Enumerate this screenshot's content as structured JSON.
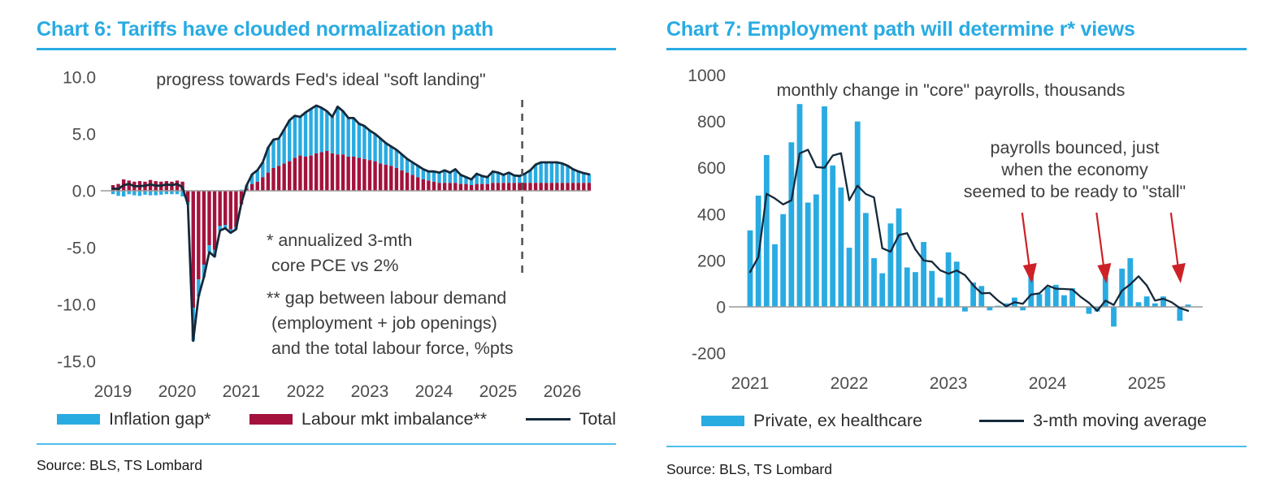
{
  "colors": {
    "accent_blue": "#29ABE2",
    "bar_blue": "#29ABE2",
    "bar_crimson": "#A3123C",
    "line_dark": "#15293A",
    "arrow_red": "#CC2127",
    "rule_light_blue": "#4FBEEC",
    "axis_text": "#4d4d4d"
  },
  "left_panel": {
    "title": "Chart 6: Tariffs have clouded normalization path",
    "subtitle": "progress towards Fed's ideal \"soft landing\"",
    "footnote_pce": "* annualized 3-mth\n core PCE vs 2%",
    "footnote_labour": "** gap between labour demand\n (employment + job openings)\n and the total labour force, %pts",
    "source": "Source: BLS, TS Lombard",
    "legend": [
      {
        "label": "Inflation gap*",
        "color": "#29ABE2",
        "type": "swatch"
      },
      {
        "label": "Labour mkt imbalance**",
        "color": "#A3123C",
        "type": "swatch"
      },
      {
        "label": "Total",
        "color": "#15293A",
        "type": "line"
      }
    ]
  },
  "right_panel": {
    "title": "Chart 7: Employment path will determine r* views",
    "subtitle": "monthly change in \"core\" payrolls, thousands",
    "annotation": "payrolls bounced, just\nwhen the economy\nseemed to be ready to \"stall\"",
    "source": "Source: BLS, TS Lombard",
    "legend": [
      {
        "label": "Private, ex healthcare",
        "color": "#29ABE2",
        "type": "swatch"
      },
      {
        "label": "3-mth moving average",
        "color": "#15293A",
        "type": "line"
      }
    ]
  },
  "chart_data": [
    {
      "id": "chart6",
      "type": "bar",
      "stacked": true,
      "title": "Chart 6: Tariffs have clouded normalization path",
      "subtitle": "progress towards Fed's ideal \"soft landing\"",
      "start_month": "2019-01",
      "end_month": "2026-06",
      "xticks": [
        "2019",
        "2020",
        "2021",
        "2022",
        "2023",
        "2024",
        "2025",
        "2026"
      ],
      "yticks": [
        "10.0",
        "5.0",
        "0.0",
        "-5.0",
        "-10.0",
        "-15.0"
      ],
      "ytick_values": [
        10,
        5,
        0,
        -5,
        -10,
        -15
      ],
      "ylim": [
        -15,
        10
      ],
      "grid": false,
      "legend_position": "bottom",
      "forecast_divider_after_index": 76,
      "series": [
        {
          "name": "Labour mkt imbalance**",
          "color": "#A3123C",
          "values": [
            0.5,
            0.6,
            1.0,
            0.9,
            0.8,
            0.85,
            0.8,
            0.95,
            0.85,
            0.8,
            0.85,
            0.8,
            0.9,
            0.8,
            -1.0,
            -10.3,
            -7.8,
            -6.5,
            -4.8,
            -5.2,
            -3.1,
            -3.0,
            -3.4,
            -3.2,
            -1.2,
            0.2,
            0.6,
            0.8,
            1.2,
            1.6,
            2.0,
            2.2,
            2.4,
            2.6,
            2.9,
            3.1,
            3.0,
            3.1,
            3.3,
            3.4,
            3.5,
            3.3,
            3.2,
            3.2,
            3.0,
            3.0,
            2.9,
            2.8,
            2.7,
            2.6,
            2.4,
            2.3,
            2.2,
            2.0,
            1.8,
            1.6,
            1.4,
            1.2,
            1.0,
            0.9,
            0.8,
            0.7,
            0.7,
            0.7,
            0.7,
            0.6,
            0.6,
            0.5,
            0.6,
            0.6,
            0.6,
            0.7,
            0.7,
            0.7,
            0.7,
            0.7,
            0.7,
            0.7,
            0.7,
            0.7,
            0.7,
            0.7,
            0.7,
            0.7,
            0.7,
            0.7,
            0.7,
            0.7,
            0.7,
            0.7
          ]
        },
        {
          "name": "Inflation gap*",
          "color": "#29ABE2",
          "values": [
            -0.3,
            -0.45,
            -0.5,
            -0.3,
            -0.4,
            -0.45,
            -0.35,
            -0.4,
            -0.4,
            -0.35,
            -0.3,
            -0.3,
            -0.3,
            -0.5,
            -0.2,
            -2.9,
            -1.5,
            -1.1,
            -0.6,
            -0.6,
            -0.4,
            -0.3,
            -0.3,
            -0.2,
            0.1,
            0.3,
            0.85,
            1.0,
            1.3,
            2.2,
            2.5,
            2.4,
            3.0,
            3.6,
            3.7,
            3.4,
            3.9,
            4.1,
            4.2,
            3.9,
            3.5,
            3.2,
            4.2,
            3.8,
            3.4,
            3.4,
            3.0,
            2.9,
            2.6,
            2.4,
            2.2,
            1.9,
            1.7,
            1.6,
            1.4,
            1.2,
            1.1,
            1.0,
            0.9,
            0.8,
            0.9,
            0.9,
            1.1,
            0.9,
            1.2,
            0.8,
            0.6,
            0.5,
            0.9,
            0.7,
            0.6,
            1.0,
            0.9,
            0.7,
            0.9,
            0.65,
            0.6,
            0.8,
            1.1,
            1.6,
            1.8,
            1.8,
            1.8,
            1.8,
            1.7,
            1.5,
            1.2,
            1.0,
            0.85,
            0.75
          ]
        }
      ],
      "line_series": {
        "name": "Total",
        "color": "#15293A",
        "definition": "sum of stacked components"
      }
    },
    {
      "id": "chart7",
      "type": "bar",
      "stacked": false,
      "title": "Chart 7: Employment path will determine r* views",
      "subtitle": "monthly change in \"core\" payrolls, thousands",
      "start_month": "2021-01",
      "end_month": "2025-06",
      "xticks": [
        "2021",
        "2022",
        "2023",
        "2024",
        "2025"
      ],
      "yticks": [
        "1000",
        "800",
        "600",
        "400",
        "200",
        "0",
        "-200"
      ],
      "ytick_values": [
        1000,
        800,
        600,
        400,
        200,
        0,
        -200
      ],
      "ylim": [
        -200,
        1000
      ],
      "grid": false,
      "legend_position": "bottom",
      "series": [
        {
          "name": "Private, ex healthcare",
          "color": "#29ABE2",
          "values": [
            330,
            480,
            655,
            270,
            400,
            710,
            875,
            450,
            485,
            865,
            610,
            515,
            255,
            800,
            405,
            210,
            145,
            360,
            425,
            170,
            150,
            280,
            155,
            40,
            235,
            195,
            -20,
            105,
            90,
            -15,
            5,
            15,
            40,
            -15,
            135,
            55,
            85,
            95,
            50,
            80,
            0,
            -30,
            -20,
            130,
            -85,
            165,
            210,
            20,
            45,
            15,
            45,
            0,
            -60,
            10
          ]
        }
      ],
      "line_series": {
        "name": "3-mth moving average",
        "color": "#15293A",
        "definition": "3-month trailing moving average of bars",
        "values": [
          150,
          215,
          488,
          468,
          442,
          460,
          662,
          678,
          603,
          600,
          653,
          663,
          460,
          523,
          487,
          472,
          253,
          238,
          310,
          318,
          248,
          200,
          195,
          158,
          143,
          157,
          137,
          93,
          58,
          60,
          27,
          2,
          20,
          13,
          53,
          58,
          92,
          78,
          77,
          75,
          43,
          17,
          -17,
          27,
          8,
          70,
          97,
          132,
          92,
          27,
          35,
          20,
          -5,
          -17
        ]
      },
      "annotation": "payrolls bounced, just\nwhen the economy\nseemed to be ready to \"stall\"",
      "arrow_month_indices": [
        34,
        43,
        52
      ]
    }
  ]
}
